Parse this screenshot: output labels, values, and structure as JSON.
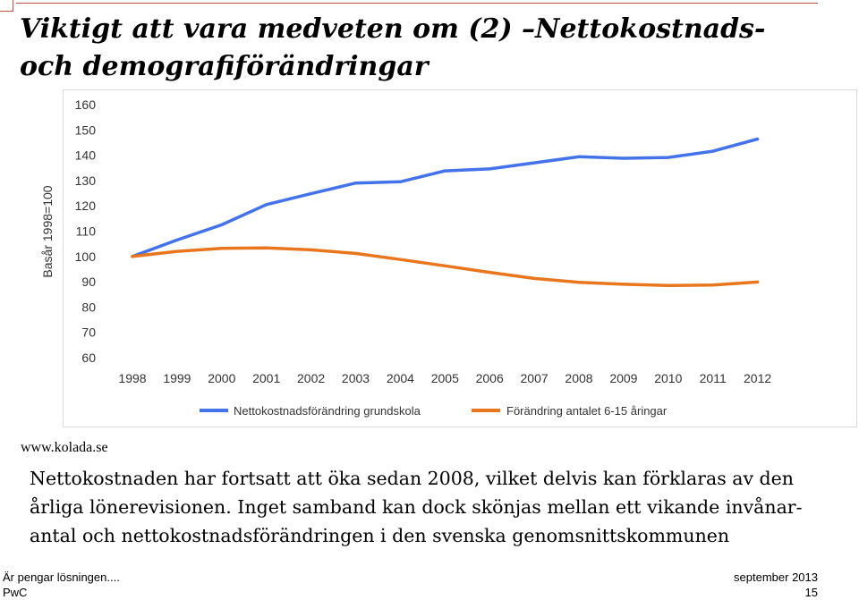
{
  "slide": {
    "title": "Viktigt att vara medveten om (2) –Nettokostnads- och demografiförändringar",
    "source": "www.kolada.se",
    "body": "Nettokostnaden har fortsatt att öka sedan 2008, vilket delvis kan förklaras av den årliga lönerevisionen. Inget samband kan dock skönjas mellan ett vikande invånar-antal och nettokostnadsförändringen i den svenska genomsnittskommunen",
    "footer": {
      "left_line1": "Är pengar lösningen....",
      "left_line2": "PwC",
      "right_line1": "september 2013",
      "right_line2": "15"
    },
    "accent_color": "#c0504d"
  },
  "chart_data": {
    "type": "line",
    "title": "",
    "xlabel": "",
    "ylabel": "Basår 1998=100",
    "x": [
      "1998",
      "1999",
      "2000",
      "2001",
      "2002",
      "2003",
      "2004",
      "2005",
      "2006",
      "2007",
      "2008",
      "2009",
      "2010",
      "2011",
      "2012"
    ],
    "ylim": [
      60,
      160
    ],
    "yticks": [
      60,
      70,
      80,
      90,
      100,
      110,
      120,
      130,
      140,
      150,
      160
    ],
    "grid": false,
    "legend": "bottom",
    "series": [
      {
        "name": "Nettokostnadsförändring grundskola",
        "color": "#4472e8",
        "values": [
          100,
          106.5,
          112.5,
          120.5,
          124.8,
          129,
          129.5,
          133.8,
          134.6,
          137,
          139.4,
          138.8,
          139.1,
          141.6,
          146.4
        ]
      },
      {
        "name": "Förändring antalet 6-15 åringar",
        "color": "#e8761e",
        "values": [
          100,
          102,
          103.2,
          103.4,
          102.6,
          101.2,
          98.8,
          96.3,
          93.7,
          91.3,
          89.8,
          89,
          88.5,
          88.7,
          89.9
        ]
      }
    ]
  }
}
